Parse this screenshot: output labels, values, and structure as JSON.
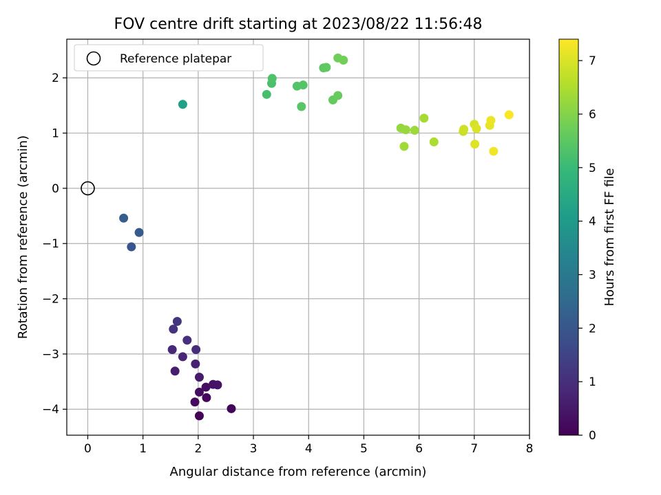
{
  "chart_data": {
    "type": "scatter",
    "title": "FOV centre drift starting at 2023/08/22 11:56:48",
    "xlabel": "Angular distance from reference (arcmin)",
    "ylabel": "Rotation from reference (arcmin)",
    "xlim": [
      -0.38,
      8.0
    ],
    "ylim": [
      -4.47,
      2.7
    ],
    "xticks": [
      0,
      1,
      2,
      3,
      4,
      5,
      6,
      7,
      8
    ],
    "xtick_labels": [
      "0",
      "1",
      "2",
      "3",
      "4",
      "5",
      "6",
      "7",
      "8"
    ],
    "yticks": [
      2,
      1,
      0,
      -1,
      -2,
      -3,
      -4
    ],
    "ytick_labels": [
      "2",
      "1",
      "0",
      "−1",
      "−2",
      "−3",
      "−4"
    ],
    "grid": true,
    "legend": {
      "placement": "upper-left",
      "entries": [
        {
          "label": "Reference platepar",
          "marker": "open-circle"
        }
      ]
    },
    "reference_point": {
      "x": 0,
      "y": 0
    },
    "colorbar": {
      "label": "Hours from first FF file",
      "colormap": "viridis",
      "range": [
        0,
        7.4
      ],
      "ticks": [
        0,
        1,
        2,
        3,
        4,
        5,
        6,
        7
      ],
      "tick_labels": [
        "0",
        "1",
        "2",
        "3",
        "4",
        "5",
        "6",
        "7"
      ],
      "colormap_stops": [
        "#440154",
        "#482878",
        "#3e4989",
        "#31688e",
        "#26828e",
        "#1f9e89",
        "#35b779",
        "#6ece58",
        "#b5de2b",
        "#fde725"
      ]
    },
    "points": [
      {
        "x": 2.02,
        "y": -4.12,
        "t": 0.05
      },
      {
        "x": 2.6,
        "y": -3.99,
        "t": 0.1
      },
      {
        "x": 2.15,
        "y": -3.79,
        "t": 0.15
      },
      {
        "x": 1.94,
        "y": -3.87,
        "t": 0.2
      },
      {
        "x": 2.02,
        "y": -3.69,
        "t": 0.25
      },
      {
        "x": 2.14,
        "y": -3.6,
        "t": 0.3
      },
      {
        "x": 2.27,
        "y": -3.55,
        "t": 0.35
      },
      {
        "x": 2.35,
        "y": -3.56,
        "t": 0.4
      },
      {
        "x": 2.02,
        "y": -3.42,
        "t": 0.55
      },
      {
        "x": 1.58,
        "y": -3.31,
        "t": 0.6
      },
      {
        "x": 1.95,
        "y": -3.18,
        "t": 0.7
      },
      {
        "x": 1.72,
        "y": -3.05,
        "t": 0.8
      },
      {
        "x": 1.53,
        "y": -2.92,
        "t": 0.85
      },
      {
        "x": 1.96,
        "y": -2.92,
        "t": 0.95
      },
      {
        "x": 1.8,
        "y": -2.75,
        "t": 1.0
      },
      {
        "x": 1.55,
        "y": -2.55,
        "t": 1.1
      },
      {
        "x": 1.62,
        "y": -2.41,
        "t": 1.15
      },
      {
        "x": 0.79,
        "y": -1.06,
        "t": 2.0
      },
      {
        "x": 0.93,
        "y": -0.8,
        "t": 2.1
      },
      {
        "x": 0.65,
        "y": -0.54,
        "t": 2.2
      },
      {
        "x": 1.72,
        "y": 1.52,
        "t": 4.2
      },
      {
        "x": 3.24,
        "y": 1.7,
        "t": 5.2
      },
      {
        "x": 3.33,
        "y": 1.9,
        "t": 5.25
      },
      {
        "x": 3.34,
        "y": 1.99,
        "t": 5.3
      },
      {
        "x": 3.79,
        "y": 1.85,
        "t": 5.35
      },
      {
        "x": 3.9,
        "y": 1.87,
        "t": 5.4
      },
      {
        "x": 3.87,
        "y": 1.48,
        "t": 5.45
      },
      {
        "x": 4.27,
        "y": 2.18,
        "t": 5.5
      },
      {
        "x": 4.32,
        "y": 2.19,
        "t": 5.55
      },
      {
        "x": 4.44,
        "y": 1.6,
        "t": 5.6
      },
      {
        "x": 4.53,
        "y": 1.68,
        "t": 5.65
      },
      {
        "x": 4.53,
        "y": 2.36,
        "t": 5.75
      },
      {
        "x": 4.63,
        "y": 2.32,
        "t": 5.8
      },
      {
        "x": 5.67,
        "y": 1.09,
        "t": 6.2
      },
      {
        "x": 5.76,
        "y": 1.06,
        "t": 6.25
      },
      {
        "x": 5.92,
        "y": 1.05,
        "t": 6.3
      },
      {
        "x": 5.73,
        "y": 0.76,
        "t": 6.35
      },
      {
        "x": 6.09,
        "y": 1.27,
        "t": 6.4
      },
      {
        "x": 6.27,
        "y": 0.84,
        "t": 6.45
      },
      {
        "x": 6.8,
        "y": 1.03,
        "t": 6.8
      },
      {
        "x": 6.81,
        "y": 1.07,
        "t": 6.85
      },
      {
        "x": 7.0,
        "y": 1.16,
        "t": 6.95
      },
      {
        "x": 7.04,
        "y": 1.08,
        "t": 7.0
      },
      {
        "x": 7.01,
        "y": 0.8,
        "t": 7.05
      },
      {
        "x": 7.28,
        "y": 1.14,
        "t": 7.15
      },
      {
        "x": 7.3,
        "y": 1.23,
        "t": 7.2
      },
      {
        "x": 7.35,
        "y": 0.67,
        "t": 7.25
      },
      {
        "x": 7.63,
        "y": 1.33,
        "t": 7.35
      }
    ]
  }
}
